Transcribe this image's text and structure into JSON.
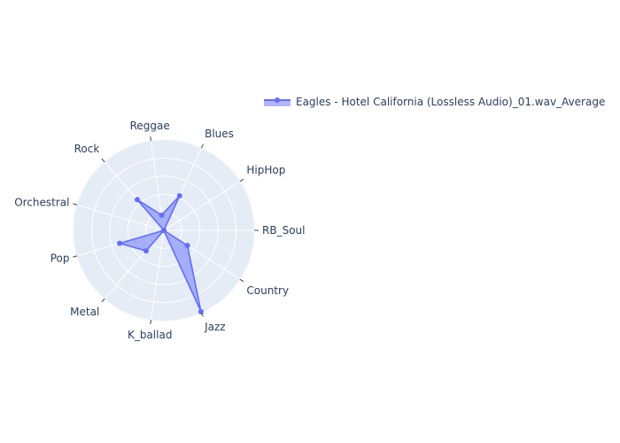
{
  "chart_data": {
    "type": "radar",
    "title": "",
    "categories": [
      "RB_Soul",
      "HipHop",
      "Blues",
      "Reggae",
      "Rock",
      "Orchestral",
      "Pop",
      "Metal",
      "K_ballad",
      "Jazz",
      "Country"
    ],
    "series": [
      {
        "name": "Eagles - Hotel California (Lossless Audio)_01.wav_Average",
        "values": [
          0.0,
          0.0,
          0.42,
          0.17,
          0.45,
          0.0,
          0.51,
          0.3,
          0.0,
          0.99,
          0.31
        ],
        "color": "#636efa"
      }
    ],
    "radial_range": [
      0,
      1
    ],
    "radial_ticks": [
      0.2,
      0.4,
      0.6,
      0.8,
      1.0
    ],
    "legend_position": "top-right",
    "grid": true,
    "colors": {
      "polar_background": "#e5ecf6",
      "grid": "#ffffff",
      "text": "#2a3f5f"
    }
  }
}
